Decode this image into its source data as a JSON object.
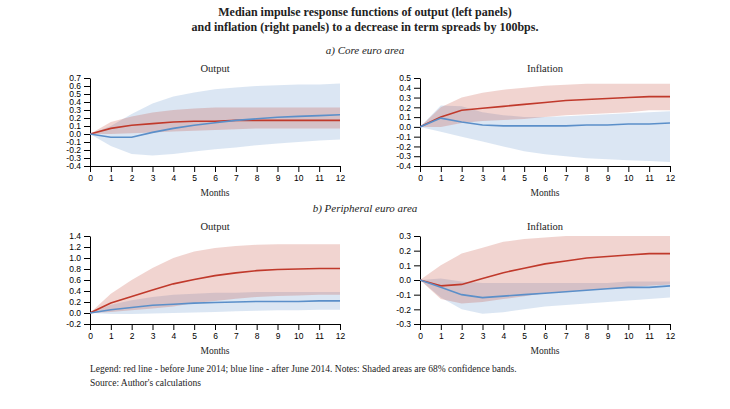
{
  "title": [
    "Median impulse response functions of output (left panels)",
    "and inflation (right panels) to a decrease in term spreads by 100bps."
  ],
  "annotations": [
    "a)   Core euro area",
    "b)   Peripheral euro area",
    "Legend: red line - before June 2014; blue line - after June 2014. Notes: Shaded areas are 68% confidence bands.",
    "Source: Author's calculations"
  ],
  "chart_data": [
    {
      "type": "line",
      "title": "Output",
      "xlabel": "Months",
      "x": [
        0,
        1,
        2,
        3,
        4,
        5,
        6,
        7,
        8,
        9,
        10,
        11,
        12
      ],
      "xlim": [
        0,
        12
      ],
      "xticks": [
        0,
        1,
        2,
        3,
        4,
        5,
        6,
        7,
        8,
        9,
        10,
        11,
        12
      ],
      "ylim": [
        -0.4,
        0.7
      ],
      "yticks": [
        -0.4,
        -0.3,
        -0.2,
        -0.1,
        {
          "value": 0.0,
          "label": "0.0"
        },
        0.1,
        0.2,
        0.3,
        0.4,
        0.5,
        0.6,
        0.7
      ],
      "series": [
        {
          "color": "#c0392b",
          "values": [
            0.0,
            0.07,
            0.11,
            0.13,
            0.15,
            0.16,
            0.16,
            0.17,
            0.17,
            0.17,
            0.17,
            0.17,
            0.17
          ],
          "upper": [
            0.0,
            0.15,
            0.22,
            0.27,
            0.3,
            0.32,
            0.33,
            0.33,
            0.33,
            0.33,
            0.33,
            0.33,
            0.33
          ],
          "lower": [
            0.0,
            0.0,
            0.01,
            0.02,
            0.03,
            0.04,
            0.05,
            0.06,
            0.07,
            0.07,
            0.07,
            0.07,
            0.07
          ]
        },
        {
          "color": "#5b8fc9",
          "values": [
            0.0,
            -0.04,
            -0.04,
            0.02,
            0.07,
            0.11,
            0.14,
            0.17,
            0.19,
            0.21,
            0.22,
            0.23,
            0.24
          ],
          "upper": [
            0.0,
            0.1,
            0.25,
            0.38,
            0.47,
            0.52,
            0.56,
            0.58,
            0.6,
            0.61,
            0.62,
            0.62,
            0.63
          ],
          "lower": [
            0.0,
            -0.15,
            -0.25,
            -0.27,
            -0.25,
            -0.22,
            -0.19,
            -0.17,
            -0.14,
            -0.12,
            -0.1,
            -0.08,
            -0.07
          ]
        }
      ]
    },
    {
      "type": "line",
      "title": "Inflation",
      "xlabel": "Months",
      "x": [
        0,
        1,
        2,
        3,
        4,
        5,
        6,
        7,
        8,
        9,
        10,
        11,
        12
      ],
      "xlim": [
        0,
        12
      ],
      "xticks": [
        0,
        1,
        2,
        3,
        4,
        5,
        6,
        7,
        8,
        9,
        10,
        11,
        12
      ],
      "ylim": [
        -0.4,
        0.5
      ],
      "yticks": [
        -0.4,
        -0.3,
        -0.2,
        -0.1,
        {
          "value": 0.0,
          "label": "0.0"
        },
        0.1,
        0.2,
        0.3,
        0.4,
        0.5
      ],
      "series": [
        {
          "color": "#c0392b",
          "values": [
            0.0,
            0.1,
            0.17,
            0.19,
            0.21,
            0.23,
            0.25,
            0.27,
            0.28,
            0.29,
            0.3,
            0.31,
            0.31
          ],
          "upper": [
            0.0,
            0.2,
            0.3,
            0.35,
            0.38,
            0.4,
            0.42,
            0.43,
            0.44,
            0.44,
            0.44,
            0.44,
            0.44
          ],
          "lower": [
            0.0,
            0.0,
            0.04,
            0.06,
            0.07,
            0.08,
            0.1,
            0.12,
            0.13,
            0.14,
            0.15,
            0.17,
            0.17
          ]
        },
        {
          "color": "#5b8fc9",
          "values": [
            0.0,
            0.09,
            0.05,
            0.02,
            0.01,
            0.01,
            0.01,
            0.01,
            0.02,
            0.02,
            0.03,
            0.03,
            0.04
          ],
          "upper": [
            0.0,
            0.22,
            0.21,
            0.15,
            0.12,
            0.1,
            0.1,
            0.11,
            0.12,
            0.13,
            0.14,
            0.15,
            0.16
          ],
          "lower": [
            0.0,
            -0.05,
            -0.1,
            -0.15,
            -0.2,
            -0.25,
            -0.28,
            -0.3,
            -0.32,
            -0.33,
            -0.34,
            -0.35,
            -0.36
          ]
        }
      ]
    },
    {
      "type": "line",
      "title": "Output",
      "xlabel": "Months",
      "x": [
        0,
        1,
        2,
        3,
        4,
        5,
        6,
        7,
        8,
        9,
        10,
        11,
        12
      ],
      "xlim": [
        0,
        12
      ],
      "xticks": [
        0,
        1,
        2,
        3,
        4,
        5,
        6,
        7,
        8,
        9,
        10,
        11,
        12
      ],
      "ylim": [
        -0.2,
        1.4
      ],
      "yticks": [
        -0.2,
        {
          "value": 0.0,
          "label": "0.0"
        },
        0.2,
        0.4,
        0.6,
        0.8,
        {
          "value": 1.0,
          "label": "1.0"
        },
        1.2,
        1.4
      ],
      "series": [
        {
          "color": "#c0392b",
          "values": [
            0.0,
            0.18,
            0.3,
            0.42,
            0.53,
            0.61,
            0.68,
            0.73,
            0.77,
            0.79,
            0.8,
            0.81,
            0.81
          ],
          "upper": [
            0.0,
            0.35,
            0.6,
            0.82,
            1.0,
            1.12,
            1.18,
            1.22,
            1.24,
            1.25,
            1.25,
            1.25,
            1.25
          ],
          "lower": [
            0.0,
            0.02,
            0.05,
            0.08,
            0.12,
            0.18,
            0.22,
            0.26,
            0.29,
            0.31,
            0.32,
            0.33,
            0.33
          ]
        },
        {
          "color": "#5b8fc9",
          "values": [
            0.0,
            0.06,
            0.1,
            0.14,
            0.16,
            0.18,
            0.19,
            0.2,
            0.21,
            0.21,
            0.21,
            0.22,
            0.22
          ],
          "upper": [
            0.0,
            0.15,
            0.23,
            0.29,
            0.33,
            0.35,
            0.37,
            0.37,
            0.38,
            0.38,
            0.38,
            0.38,
            0.38
          ],
          "lower": [
            0.0,
            -0.02,
            -0.02,
            -0.01,
            0.0,
            0.01,
            0.02,
            0.03,
            0.04,
            0.05,
            0.05,
            0.06,
            0.06
          ]
        }
      ]
    },
    {
      "type": "line",
      "title": "Inflation",
      "xlabel": "Months",
      "x": [
        0,
        1,
        2,
        3,
        4,
        5,
        6,
        7,
        8,
        9,
        10,
        11,
        12
      ],
      "xlim": [
        0,
        12
      ],
      "xticks": [
        0,
        1,
        2,
        3,
        4,
        5,
        6,
        7,
        8,
        9,
        10,
        11,
        12
      ],
      "ylim": [
        -0.3,
        0.3
      ],
      "yticks": [
        -0.3,
        -0.2,
        -0.1,
        {
          "value": 0.0,
          "label": "0.0"
        },
        0.1,
        0.2,
        0.3
      ],
      "series": [
        {
          "color": "#c0392b",
          "values": [
            0.0,
            -0.04,
            -0.03,
            0.01,
            0.05,
            0.08,
            0.11,
            0.13,
            0.15,
            0.16,
            0.17,
            0.18,
            0.18
          ],
          "upper": [
            0.0,
            0.1,
            0.18,
            0.22,
            0.26,
            0.28,
            0.29,
            0.3,
            0.3,
            0.3,
            0.3,
            0.3,
            0.3
          ],
          "lower": [
            0.0,
            -0.13,
            -0.16,
            -0.15,
            -0.13,
            -0.11,
            -0.09,
            -0.08,
            -0.07,
            -0.06,
            -0.05,
            -0.04,
            -0.03
          ]
        },
        {
          "color": "#5b8fc9",
          "values": [
            0.0,
            -0.05,
            -0.1,
            -0.12,
            -0.11,
            -0.1,
            -0.09,
            -0.08,
            -0.07,
            -0.06,
            -0.05,
            -0.05,
            -0.04
          ],
          "upper": [
            0.0,
            0.01,
            -0.01,
            -0.02,
            -0.02,
            -0.02,
            -0.02,
            -0.02,
            -0.02,
            -0.02,
            -0.01,
            -0.01,
            -0.01
          ],
          "lower": [
            0.0,
            -0.12,
            -0.2,
            -0.23,
            -0.22,
            -0.2,
            -0.18,
            -0.17,
            -0.16,
            -0.15,
            -0.14,
            -0.13,
            -0.12
          ]
        }
      ]
    }
  ]
}
